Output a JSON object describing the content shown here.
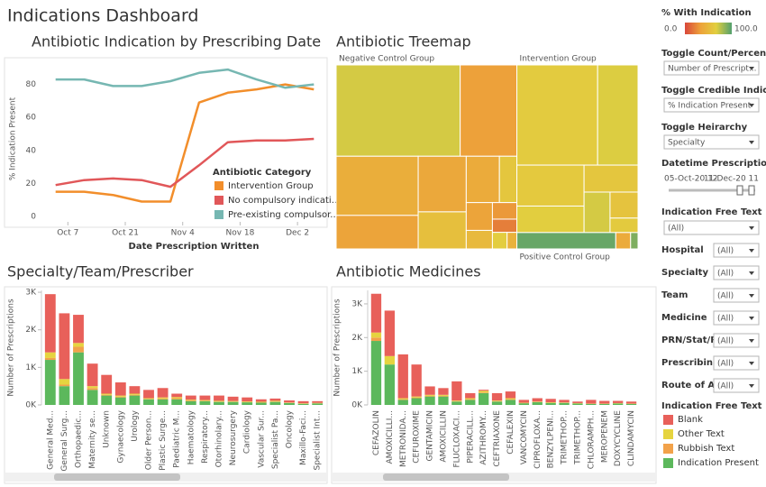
{
  "title": "Indications Dashboard",
  "chart_data": [
    {
      "type": "line",
      "title": "Antibiotic Indication by Prescribing Date",
      "x_label": "Date Prescription Written",
      "y_label": "% Indication Present",
      "x": [
        278,
        285,
        292,
        299,
        306,
        313,
        320,
        327,
        334,
        341
      ],
      "xlim": [
        275,
        344
      ],
      "xticks": [
        {
          "value": 281,
          "label": "Oct 7"
        },
        {
          "value": 295,
          "label": "Oct 21"
        },
        {
          "value": 309,
          "label": "Nov 4"
        },
        {
          "value": 323,
          "label": "Nov 18"
        },
        {
          "value": 337,
          "label": "Dec 2"
        }
      ],
      "ylim": [
        0,
        94
      ],
      "yticks": [
        0,
        20,
        40,
        60,
        80
      ],
      "grid": false,
      "legend_title": "Antibiotic Category",
      "series": [
        {
          "name": "Intervention Group",
          "color": "#f28e2b",
          "values": [
            15,
            15,
            13,
            9,
            9,
            69,
            75,
            77,
            80,
            77
          ]
        },
        {
          "name": "No compulsory indicati...",
          "color": "#e15759",
          "values": [
            19,
            22,
            23,
            22,
            18,
            31,
            45,
            46,
            46,
            47
          ]
        },
        {
          "name": "Pre-existing compulsor...",
          "color": "#76b7b2",
          "values": [
            83,
            83,
            79,
            79,
            82,
            87,
            89,
            83,
            78,
            80
          ]
        }
      ]
    },
    {
      "type": "treemap",
      "title": "Antibiotic Treemap",
      "color_title": "% With Indication",
      "color_ticks": [
        {
          "value": 0,
          "label": "0.0"
        },
        {
          "value": 100,
          "label": "100.0"
        }
      ],
      "color_scale": [
        "#d9473b",
        "#eda23a",
        "#e2cf3f",
        "#53a06e"
      ],
      "groups": [
        {
          "name": "Negative Control Group",
          "items": [
            {
              "size": 14000,
              "pct": 70
            },
            {
              "size": 6400,
              "pct": 33
            },
            {
              "size": 6000,
              "pct": 42
            },
            {
              "size": 3400,
              "pct": 35
            },
            {
              "size": 3300,
              "pct": 38
            },
            {
              "size": 2200,
              "pct": 55
            },
            {
              "size": 1900,
              "pct": 40
            },
            {
              "size": 1000,
              "pct": 60
            },
            {
              "size": 900,
              "pct": 35
            },
            {
              "size": 600,
              "pct": 50
            },
            {
              "size": 500,
              "pct": 30
            },
            {
              "size": 400,
              "pct": 20
            },
            {
              "size": 300,
              "pct": 65
            },
            {
              "size": 200,
              "pct": 45
            }
          ]
        },
        {
          "name": "Intervention Group",
          "items": [
            {
              "size": 10000,
              "pct": 64
            },
            {
              "size": 5000,
              "pct": 68
            },
            {
              "size": 3400,
              "pct": 62
            },
            {
              "size": 2200,
              "pct": 66
            },
            {
              "size": 1800,
              "pct": 60
            },
            {
              "size": 1300,
              "pct": 70
            },
            {
              "size": 900,
              "pct": 58
            },
            {
              "size": 500,
              "pct": 63
            }
          ]
        },
        {
          "name": "Positive Control Group",
          "items": [
            {
              "size": 2000,
              "pct": 95
            },
            {
              "size": 300,
              "pct": 40
            },
            {
              "size": 150,
              "pct": 90
            }
          ]
        }
      ]
    },
    {
      "type": "stacked_bar",
      "title": "Specialty/Team/Prescriber",
      "y_label": "Number of Prescriptions",
      "categories": [
        "General Med...",
        "General Surg...",
        "Orthopaedic...",
        "Maternity se...",
        "Unknown",
        "Gynaecology",
        "Urology",
        "Older Person...",
        "Plastic Surge...",
        "Paediatric M...",
        "Haematology",
        "Respiratory...",
        "Otorhinolary...",
        "Neurosurgery",
        "Cardiology",
        "Vascular Sur...",
        "Specialist Pa...",
        "Oncology",
        "Maxillo-Faci...",
        "Specialist Int..."
      ],
      "ylim": [
        0,
        3050
      ],
      "yticks": [
        {
          "value": 0,
          "label": "0K"
        },
        {
          "value": 1000,
          "label": "1K"
        },
        {
          "value": 2000,
          "label": "2K"
        },
        {
          "value": 3000,
          "label": "3K"
        }
      ],
      "legend_title": "Indication Free Text",
      "series": [
        {
          "name": "Blank",
          "color": "#e8605a",
          "values": [
            1550,
            1750,
            750,
            600,
            500,
            350,
            200,
            220,
            250,
            90,
            110,
            120,
            140,
            115,
            105,
            65,
            60,
            55,
            55,
            45
          ]
        },
        {
          "name": "Other Text",
          "color": "#e6d43f",
          "values": [
            150,
            150,
            100,
            50,
            30,
            30,
            30,
            20,
            30,
            30,
            20,
            20,
            20,
            15,
            15,
            15,
            20,
            10,
            10,
            10
          ]
        },
        {
          "name": "Rubbish Text",
          "color": "#f2a24a",
          "values": [
            50,
            40,
            150,
            50,
            20,
            20,
            20,
            10,
            20,
            30,
            20,
            10,
            10,
            10,
            10,
            10,
            10,
            5,
            5,
            5
          ]
        },
        {
          "name": "Indication Present",
          "color": "#5cb85c",
          "values": [
            1200,
            500,
            1400,
            400,
            250,
            200,
            250,
            150,
            150,
            150,
            100,
            100,
            80,
            80,
            70,
            60,
            80,
            50,
            30,
            40
          ]
        }
      ]
    },
    {
      "type": "stacked_bar",
      "title": "Antibiotic Medicines",
      "y_label": "Number of Prescriptions",
      "categories": [
        "CEFAZOLIN",
        "AMOXICILLI...",
        "METRONIDA...",
        "CEFUROXIME",
        "GENTAMICIN",
        "AMOXICILLIN",
        "FLUCLOXACI...",
        "PIPERACILL...",
        "AZITHROMY...",
        "CEFTRIAXONE",
        "CEFALEXIN",
        "VANCOMYCIN",
        "CIPROFLOXA...",
        "BENZYLPENI...",
        "TRIMETHOP...",
        "TRIMETHOP...",
        "CHLORAMPH...",
        "MEROPENEM",
        "DOXYCYCLINE",
        "CLINDAMYCIN"
      ],
      "ylim": [
        0,
        3400
      ],
      "yticks": [
        {
          "value": 0,
          "label": "0K"
        },
        {
          "value": 1000,
          "label": "1K"
        },
        {
          "value": 2000,
          "label": "2K"
        },
        {
          "value": 3000,
          "label": "3K"
        }
      ],
      "series": [
        {
          "color": "#e8605a",
          "values": [
            1150,
            1350,
            1300,
            950,
            250,
            200,
            570,
            150,
            30,
            220,
            200,
            85,
            100,
            100,
            75,
            45,
            110,
            80,
            65,
            60
          ]
        },
        {
          "color": "#e6d43f",
          "values": [
            150,
            250,
            30,
            30,
            30,
            30,
            20,
            30,
            50,
            20,
            30,
            10,
            15,
            15,
            10,
            10,
            5,
            5,
            10,
            5
          ]
        },
        {
          "color": "#f2a24a",
          "values": [
            100,
            0,
            20,
            20,
            20,
            20,
            10,
            20,
            20,
            10,
            20,
            5,
            5,
            5,
            5,
            5,
            5,
            5,
            5,
            5
          ]
        },
        {
          "color": "#5cb85c",
          "values": [
            1900,
            1200,
            150,
            200,
            250,
            250,
            100,
            150,
            350,
            100,
            150,
            50,
            80,
            60,
            60,
            40,
            30,
            30,
            40,
            30
          ]
        }
      ]
    }
  ],
  "controls": {
    "dropdowns": [
      {
        "label": "Toggle Count/Percent",
        "value": "Number of Prescript..."
      },
      {
        "label": "Toggle Credible Indicati...",
        "value": "% Indication Present"
      },
      {
        "label": "Toggle Heirarchy",
        "value": "Specialty"
      }
    ],
    "slider": {
      "label": "Datetime Prescription ..",
      "start": "05-Oct-20 12",
      "end": "11-Dec-20 11"
    },
    "text_filter": {
      "label": "Indication Free Text",
      "value": "(All)"
    },
    "filters": [
      {
        "label": "Hospital",
        "value": "(All)"
      },
      {
        "label": "Specialty",
        "value": "(All)"
      },
      {
        "label": "Team",
        "value": "(All)"
      },
      {
        "label": "Medicine",
        "value": "(All)"
      },
      {
        "label": "PRN/Stat/R..",
        "value": "(All)"
      },
      {
        "label": "Prescribing..",
        "value": "(All)"
      },
      {
        "label": "Route of A..",
        "value": "(All)"
      }
    ]
  }
}
